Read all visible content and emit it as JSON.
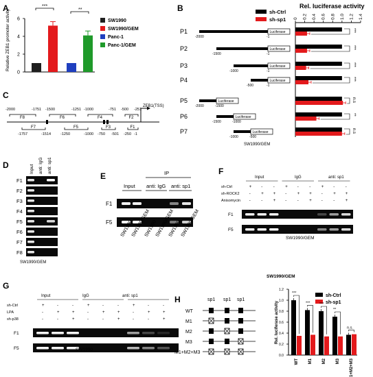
{
  "panels": {
    "A": {
      "label": "A",
      "ylabel": "Relative ZEB1 promoter activity",
      "legend": [
        {
          "name": "SW1990",
          "color": "#1f1f1f"
        },
        {
          "name": "SW1990/GEM",
          "color": "#e31a1c"
        },
        {
          "name": "Panc-1",
          "color": "#1f3fbf"
        },
        {
          "name": "Panc-1/GEM",
          "color": "#1f9a2a"
        }
      ],
      "sig": [
        "***",
        "**"
      ]
    },
    "B": {
      "label": "B",
      "legend": [
        {
          "name": "sh-Ctrl",
          "color": "#000000"
        },
        {
          "name": "sh-sp1",
          "color": "#e31a1c"
        }
      ],
      "xlabel": "Rel. luciferase  activity",
      "ticks": [
        "0",
        "0.2",
        "0.4",
        "0.6",
        "0.8",
        "1.0",
        "1.2",
        "1.4"
      ],
      "rows": [
        {
          "name": "P1",
          "start": "-2000",
          "end": "-1",
          "sig": "***"
        },
        {
          "name": "P2",
          "start": "-1500",
          "end": "-1",
          "sig": "***"
        },
        {
          "name": "P3",
          "start": "-1000",
          "end": "-1",
          "sig": "***"
        },
        {
          "name": "P4",
          "start": "-500",
          "end": "-1",
          "sig": "***"
        },
        {
          "name": "P5",
          "start": "-2000",
          "end": "-1500",
          "sig": "n.s"
        },
        {
          "name": "P6",
          "start": "-1500",
          "end": "-1000",
          "sig": "**"
        },
        {
          "name": "P7",
          "start": "-1000",
          "end": "-500",
          "sig": "n.s"
        }
      ],
      "luciferase": "Luciferase",
      "caption": "SW1990/GEM"
    },
    "C": {
      "label": "C",
      "tss": "ZEB1(TSS)",
      "top": [
        "-2000",
        "-1751",
        "-1500",
        "-1251",
        "-1000",
        "-751",
        "-500",
        "-251"
      ],
      "bottom": [
        "-1757",
        "-1514",
        "-1250",
        "-1000",
        "-750",
        "-501",
        "-250",
        "-1"
      ],
      "frags_top": [
        "F8",
        "F6",
        "F4",
        "F2"
      ],
      "frags_bottom": [
        "F7",
        "F5",
        "F3",
        "F1"
      ]
    },
    "D": {
      "label": "D",
      "cols": [
        "Input",
        "anti: IgG",
        "anti: sp1"
      ],
      "rows": [
        "F1",
        "F2",
        "F3",
        "F4",
        "F5",
        "F6",
        "F7",
        "F8"
      ],
      "caption": "SW1990/GEM"
    },
    "E": {
      "label": "E",
      "ip": "IP",
      "groups": [
        "Input",
        "anti: IgG",
        "anti: sp1"
      ],
      "rows": [
        "F1",
        "F5"
      ],
      "lanes": [
        "SW1990",
        "SW1990/GEM",
        "SW1990",
        "SW1990/GEM",
        "SW1990",
        "SW1990/GEM"
      ]
    },
    "F": {
      "label": "F",
      "groups": [
        "Input",
        "IgG",
        "anti: sp1"
      ],
      "conds": [
        "sh-Ctrl",
        "sh-ROCK2",
        "Anisomycin"
      ],
      "signs": [
        [
          "+",
          "-",
          "-",
          "+",
          "-",
          "-",
          "+",
          "-",
          "-"
        ],
        [
          "-",
          "+",
          "+",
          "-",
          "+",
          "+",
          "-",
          "+",
          "+"
        ],
        [
          "-",
          "-",
          "+",
          "-",
          "-",
          "+",
          "-",
          "-",
          "+"
        ]
      ],
      "rows": [
        "F1",
        "F5"
      ],
      "caption": "SW1990/GEM"
    },
    "G": {
      "label": "G",
      "groups": [
        "Input",
        "IgG",
        "anti: sp1"
      ],
      "conds": [
        "sh-Ctrl",
        "LPA",
        "sh-p38"
      ],
      "signs": [
        [
          "+",
          "-",
          "-",
          "+",
          "-",
          "-",
          "+",
          "-",
          "-"
        ],
        [
          "-",
          "+",
          "+",
          "-",
          "+",
          "+",
          "-",
          "+",
          "+"
        ],
        [
          "-",
          "-",
          "+",
          "-",
          "-",
          "+",
          "-",
          "-",
          "+"
        ]
      ],
      "rows": [
        "F1",
        "F5"
      ],
      "caption": "SW1990"
    },
    "H": {
      "label": "H",
      "sites": [
        "sp1",
        "sp1",
        "sp1"
      ],
      "constructs": [
        "WT",
        "M1",
        "M2",
        "M3",
        "M1+M2+M3"
      ],
      "caption": "SW1990/GEM",
      "ylabel": "Rel. luciferase  activity",
      "legend": [
        {
          "name": "sh-Ctrl",
          "color": "#000000"
        },
        {
          "name": "sh-sp1",
          "color": "#e31a1c"
        }
      ],
      "yticks": [
        "0.0",
        "0.2",
        "0.4",
        "0.6",
        "0.8",
        "1.0",
        "1.2"
      ],
      "sig": [
        "***",
        "***",
        "***",
        "**",
        "n.s."
      ]
    }
  },
  "chart_data": [
    {
      "type": "bar",
      "panel": "A",
      "categories": [
        "SW1990",
        "SW1990/GEM",
        "Panc-1",
        "Panc-1/GEM"
      ],
      "values": [
        1.0,
        5.2,
        1.0,
        4.1
      ],
      "ylabel": "Relative ZEB1 promoter activity",
      "ylim": [
        0,
        6
      ],
      "yticks": [
        0,
        2,
        4,
        6
      ]
    },
    {
      "type": "bar",
      "panel": "B",
      "orientation": "horizontal",
      "categories": [
        "P1",
        "P2",
        "P3",
        "P4",
        "P5",
        "P6",
        "P7"
      ],
      "series": [
        {
          "name": "sh-Ctrl",
          "values": [
            1.0,
            1.0,
            1.0,
            1.0,
            1.0,
            1.0,
            1.0
          ]
        },
        {
          "name": "sh-sp1",
          "values": [
            0.25,
            0.25,
            0.23,
            0.28,
            1.02,
            0.45,
            1.0
          ]
        }
      ],
      "xlabel": "Rel. luciferase  activity",
      "xlim": [
        0,
        1.4
      ]
    },
    {
      "type": "bar",
      "panel": "H",
      "categories": [
        "WT",
        "M1",
        "M2",
        "M3",
        "M1+M2+M3"
      ],
      "series": [
        {
          "name": "sh-Ctrl",
          "values": [
            1.0,
            0.82,
            0.8,
            0.7,
            0.37
          ]
        },
        {
          "name": "sh-sp1",
          "values": [
            0.35,
            0.37,
            0.34,
            0.34,
            0.38
          ]
        }
      ],
      "ylabel": "Rel. luciferase  activity",
      "ylim": [
        0,
        1.2
      ]
    }
  ]
}
